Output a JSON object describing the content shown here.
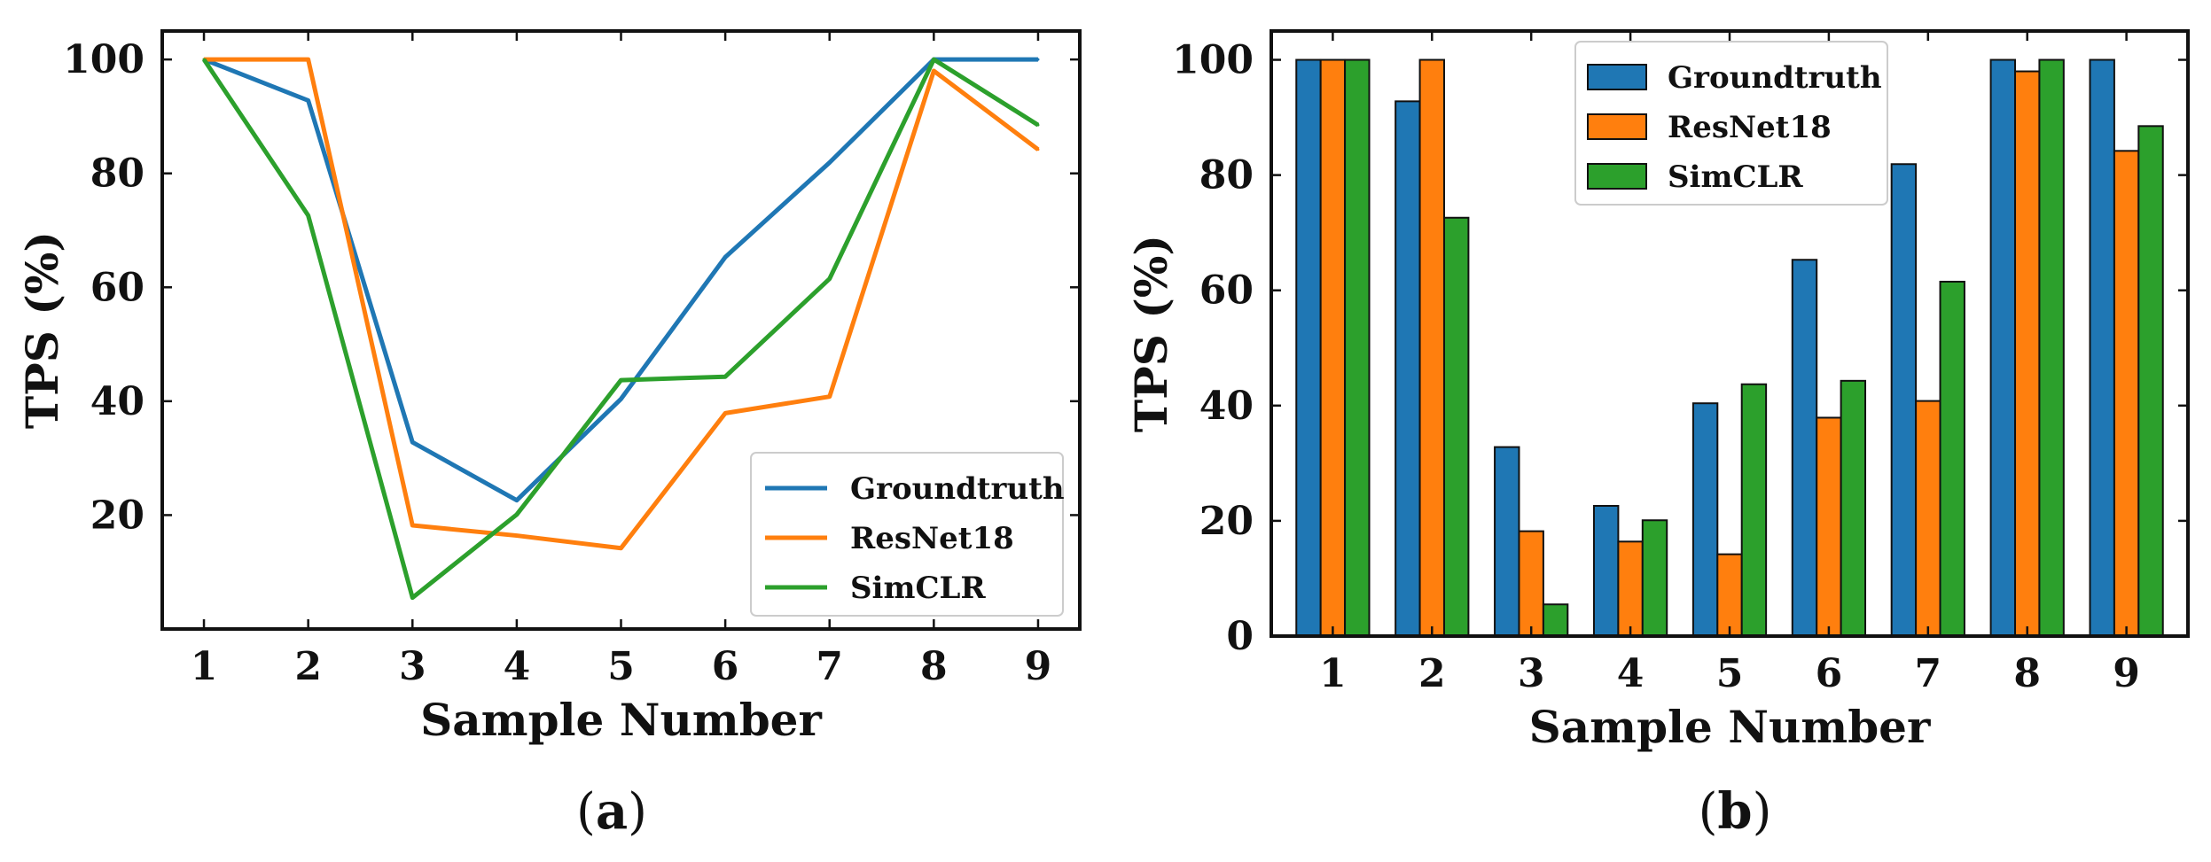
{
  "colors": {
    "Groundtruth": "#1f77b4",
    "ResNet18": "#ff7f0e",
    "SimCLR": "#2ca02c"
  },
  "chart_data": [
    {
      "type": "line",
      "caption": {
        "open": "(",
        "letter": "a",
        "close": ")"
      },
      "xlabel": "Sample Number",
      "ylabel": "TPS (%)",
      "x": [
        1,
        2,
        3,
        4,
        5,
        6,
        7,
        8,
        9
      ],
      "xlim": [
        0.6,
        9.4
      ],
      "ylim": [
        0,
        105
      ],
      "yticks": [
        20,
        40,
        60,
        80,
        100
      ],
      "legend_position": "lower-right",
      "series": [
        {
          "name": "Groundtruth",
          "values": [
            100,
            92.8,
            32.8,
            22.6,
            40.4,
            65.3,
            81.9,
            100,
            100
          ]
        },
        {
          "name": "ResNet18",
          "values": [
            100,
            100,
            18.2,
            16.4,
            14.2,
            37.9,
            40.8,
            98,
            84.2
          ]
        },
        {
          "name": "SimCLR",
          "values": [
            100,
            72.6,
            5.5,
            20.1,
            43.7,
            44.3,
            61.5,
            100,
            88.5
          ]
        }
      ]
    },
    {
      "type": "bar",
      "caption": {
        "open": "(",
        "letter": "b",
        "close": ")"
      },
      "xlabel": "Sample Number",
      "ylabel": "TPS (%)",
      "categories": [
        "1",
        "2",
        "3",
        "4",
        "5",
        "6",
        "7",
        "8",
        "9"
      ],
      "ylim": [
        0,
        105
      ],
      "yticks": [
        0,
        20,
        40,
        60,
        80,
        100
      ],
      "legend_position": "top-center",
      "series": [
        {
          "name": "Groundtruth",
          "values": [
            100,
            92.8,
            32.8,
            22.6,
            40.4,
            65.3,
            81.9,
            100,
            100
          ]
        },
        {
          "name": "ResNet18",
          "values": [
            100,
            100,
            18.2,
            16.4,
            14.2,
            37.9,
            40.8,
            98,
            84.2
          ]
        },
        {
          "name": "SimCLR",
          "values": [
            100,
            72.6,
            5.5,
            20.1,
            43.7,
            44.3,
            61.5,
            100,
            88.5
          ]
        }
      ]
    }
  ]
}
